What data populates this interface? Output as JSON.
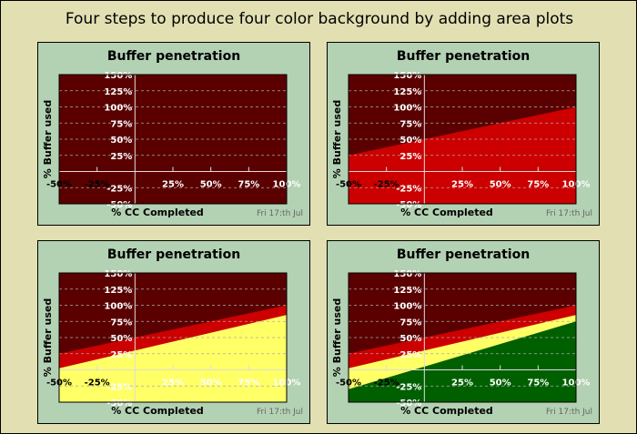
{
  "title": "Four steps to produce four color background by adding area plots",
  "colors": {
    "page_bg": "#e2dfb2",
    "panel_bg": "#b3d1b3",
    "darkred": "#5a0000",
    "red": "#cc0000",
    "yellow": "#ffff66",
    "green": "#006000"
  },
  "chart_data": [
    {
      "type": "area",
      "title": "Buffer penetration",
      "xlabel": "% CC Completed",
      "ylabel": "% Buffer used",
      "footer": "Fri 17:th Jul",
      "xlim": [
        -50,
        100
      ],
      "ylim": [
        -50,
        150
      ],
      "xticks": [
        "-50%",
        "-25%",
        "25%",
        "50%",
        "75%",
        "100%"
      ],
      "xtick_values": [
        -50,
        -25,
        25,
        50,
        75,
        100
      ],
      "yticks": [
        "-50%",
        "-25%",
        "25%",
        "50%",
        "75%",
        "100%",
        "125%",
        "150%"
      ],
      "ytick_values": [
        -50,
        -25,
        25,
        50,
        75,
        100,
        125,
        150
      ],
      "grid": true,
      "background": "darkred",
      "series": []
    },
    {
      "type": "area",
      "title": "Buffer penetration",
      "xlabel": "% CC Completed",
      "ylabel": "% Buffer used",
      "footer": "Fri 17:th Jul",
      "xlim": [
        -50,
        100
      ],
      "ylim": [
        -50,
        150
      ],
      "xticks": [
        "-50%",
        "-25%",
        "25%",
        "50%",
        "75%",
        "100%"
      ],
      "xtick_values": [
        -50,
        -25,
        25,
        50,
        75,
        100
      ],
      "yticks": [
        "-50%",
        "-25%",
        "25%",
        "50%",
        "75%",
        "100%",
        "125%",
        "150%"
      ],
      "ytick_values": [
        -50,
        -25,
        25,
        50,
        75,
        100,
        125,
        150
      ],
      "grid": true,
      "background": "darkred",
      "series": [
        {
          "color": "red",
          "x": [
            -50,
            100
          ],
          "y": [
            25,
            100
          ]
        }
      ]
    },
    {
      "type": "area",
      "title": "Buffer penetration",
      "xlabel": "% CC Completed",
      "ylabel": "% Buffer used",
      "footer": "Fri 17:th Jul",
      "xlim": [
        -50,
        100
      ],
      "ylim": [
        -50,
        150
      ],
      "xticks": [
        "-50%",
        "-25%",
        "25%",
        "50%",
        "75%",
        "100%"
      ],
      "xtick_values": [
        -50,
        -25,
        25,
        50,
        75,
        100
      ],
      "yticks": [
        "-50%",
        "-25%",
        "25%",
        "50%",
        "75%",
        "100%",
        "125%",
        "150%"
      ],
      "ytick_values": [
        -50,
        -25,
        25,
        50,
        75,
        100,
        125,
        150
      ],
      "grid": true,
      "background": "darkred",
      "series": [
        {
          "color": "red",
          "x": [
            -50,
            100
          ],
          "y": [
            25,
            100
          ]
        },
        {
          "color": "yellow",
          "x": [
            -50,
            100
          ],
          "y": [
            2.5,
            85
          ]
        }
      ]
    },
    {
      "type": "area",
      "title": "Buffer penetration",
      "xlabel": "% CC Completed",
      "ylabel": "% Buffer used",
      "footer": "Fri 17:th Jul",
      "xlim": [
        -50,
        100
      ],
      "ylim": [
        -50,
        150
      ],
      "xticks": [
        "-50%",
        "-25%",
        "25%",
        "50%",
        "75%",
        "100%"
      ],
      "xtick_values": [
        -50,
        -25,
        25,
        50,
        75,
        100
      ],
      "yticks": [
        "-50%",
        "-25%",
        "25%",
        "50%",
        "75%",
        "100%",
        "125%",
        "150%"
      ],
      "ytick_values": [
        -50,
        -25,
        25,
        50,
        75,
        100,
        125,
        150
      ],
      "grid": true,
      "background": "darkred",
      "series": [
        {
          "color": "red",
          "x": [
            -50,
            100
          ],
          "y": [
            25,
            100
          ]
        },
        {
          "color": "yellow",
          "x": [
            -50,
            100
          ],
          "y": [
            2.5,
            85
          ]
        },
        {
          "color": "green",
          "x": [
            -50,
            100
          ],
          "y": [
            -30,
            75
          ]
        }
      ]
    }
  ]
}
